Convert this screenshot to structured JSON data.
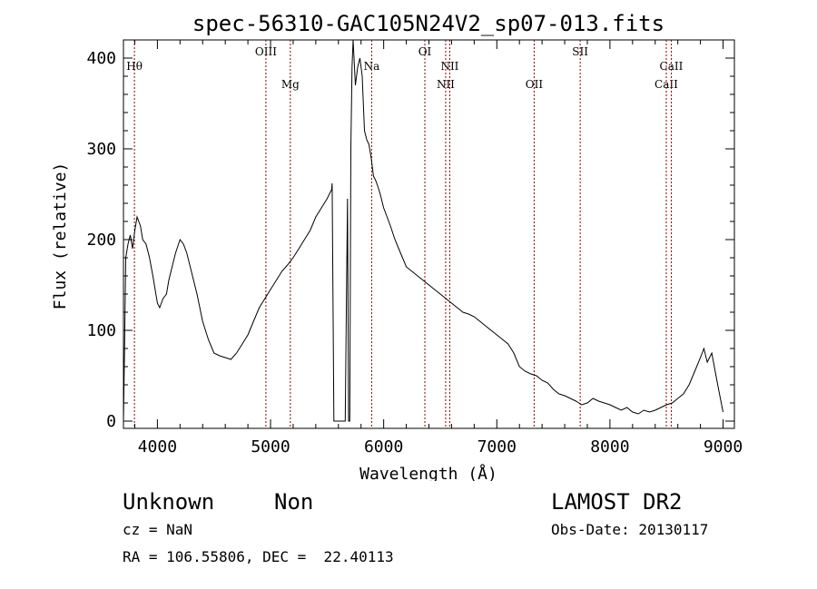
{
  "chart_data": {
    "type": "line",
    "title": "spec-56310-GAC105N24V2_sp07-013.fits",
    "xlabel": "Wavelength (Å)",
    "ylabel": "Flux (relative)",
    "xlim": [
      3700,
      9100
    ],
    "ylim": [
      -8,
      420
    ],
    "x_ticks": [
      4000,
      5000,
      6000,
      7000,
      8000,
      9000
    ],
    "y_ticks": [
      0,
      100,
      200,
      300,
      400
    ],
    "grid": false,
    "line_color": "#000000",
    "marker_color": "#8b0000",
    "series": [
      {
        "x": [
          3700,
          3710,
          3720,
          3740,
          3760,
          3780,
          3800,
          3820,
          3850,
          3870,
          3900,
          3930,
          3960,
          4000,
          4020,
          4050,
          4080,
          4100,
          4130,
          4160,
          4200,
          4230,
          4260,
          4300,
          4350,
          4400,
          4450,
          4500,
          4550,
          4600,
          4650,
          4700,
          4750,
          4800,
          4850,
          4900,
          4950,
          5000,
          5050,
          5100,
          5150,
          5200,
          5250,
          5300,
          5350,
          5400,
          5450,
          5500,
          5540,
          5545,
          5560,
          5600,
          5650,
          5660,
          5670,
          5680,
          5690,
          5700,
          5710,
          5720,
          5730,
          5750,
          5770,
          5790,
          5810,
          5830,
          5850,
          5870,
          5890,
          5910,
          5930,
          5950,
          5970,
          6000,
          6030,
          6060,
          6100,
          6150,
          6200,
          6250,
          6300,
          6350,
          6400,
          6450,
          6500,
          6550,
          6600,
          6650,
          6700,
          6750,
          6800,
          6850,
          6900,
          6950,
          7000,
          7050,
          7100,
          7150,
          7200,
          7250,
          7300,
          7350,
          7400,
          7450,
          7500,
          7550,
          7600,
          7650,
          7700,
          7750,
          7800,
          7850,
          7900,
          7950,
          8000,
          8050,
          8100,
          8150,
          8200,
          8250,
          8300,
          8350,
          8400,
          8450,
          8500,
          8550,
          8600,
          8650,
          8700,
          8750,
          8800,
          8830,
          8860,
          8900,
          8930,
          8960,
          9000
        ],
        "y": [
          0,
          80,
          180,
          195,
          205,
          190,
          210,
          225,
          215,
          200,
          195,
          180,
          160,
          130,
          125,
          135,
          140,
          155,
          170,
          185,
          200,
          195,
          185,
          165,
          140,
          110,
          90,
          75,
          72,
          70,
          68,
          75,
          85,
          95,
          110,
          125,
          135,
          145,
          155,
          165,
          172,
          180,
          190,
          200,
          210,
          225,
          235,
          245,
          255,
          262,
          0,
          0,
          0,
          0,
          120,
          245,
          0,
          0,
          300,
          390,
          420,
          370,
          390,
          400,
          380,
          320,
          310,
          305,
          290,
          270,
          265,
          258,
          250,
          235,
          225,
          215,
          200,
          185,
          170,
          165,
          160,
          155,
          150,
          145,
          140,
          135,
          130,
          125,
          120,
          118,
          115,
          110,
          105,
          100,
          95,
          90,
          85,
          75,
          60,
          55,
          52,
          50,
          45,
          42,
          35,
          30,
          28,
          25,
          22,
          18,
          20,
          25,
          22,
          20,
          18,
          15,
          12,
          15,
          10,
          8,
          12,
          10,
          12,
          15,
          18,
          20,
          25,
          30,
          40,
          55,
          70,
          80,
          65,
          75,
          55,
          35,
          10
        ]
      }
    ],
    "line_markers": [
      {
        "label": "Hθ",
        "x": 3797,
        "row": 1
      },
      {
        "label": "OIII",
        "x": 4959,
        "row": 0
      },
      {
        "label": "Mg",
        "x": 5175,
        "row": 2
      },
      {
        "label": "Na",
        "x": 5894,
        "row": 1
      },
      {
        "label": "OI",
        "x": 6364,
        "row": 0
      },
      {
        "label": "NII",
        "x": 6548,
        "row": 2
      },
      {
        "label": "NII",
        "x": 6584,
        "row": 1
      },
      {
        "label": "OII",
        "x": 7330,
        "row": 2
      },
      {
        "label": "SII",
        "x": 7737,
        "row": 0
      },
      {
        "label": "CaII",
        "x": 8498,
        "row": 2
      },
      {
        "label": "CaII",
        "x": 8542,
        "row": 1
      }
    ]
  },
  "info": {
    "object_class": "Unknown",
    "subclass": "Non",
    "survey": "LAMOST DR2",
    "cz": "cz = NaN",
    "obs_date": "Obs-Date: 20130117",
    "coords": "RA = 106.55806, DEC =  22.40113"
  }
}
